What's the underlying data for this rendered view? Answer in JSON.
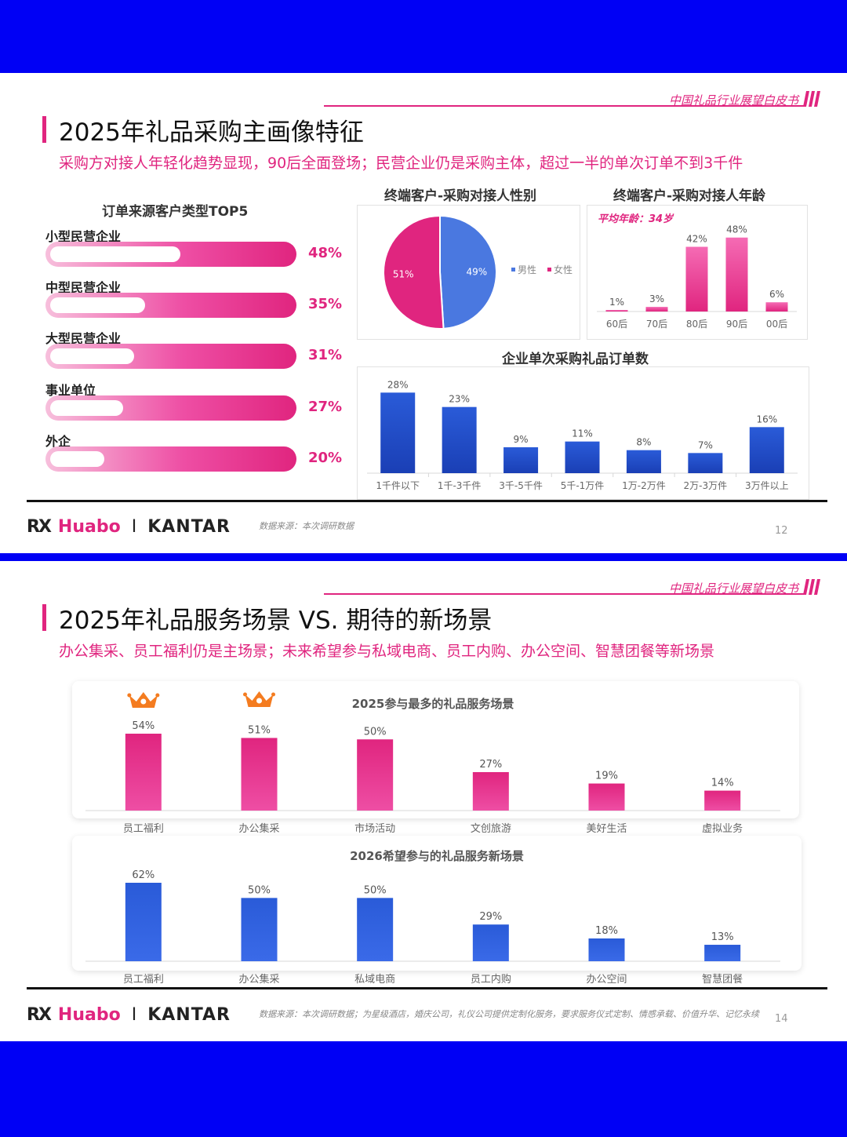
{
  "slide1": {
    "brand_tag": "中国礼品行业展望白皮书",
    "title": "2025年礼品采购主画像特征",
    "subtitle": "采购方对接人年轻化趋势显现，90后全面登场；民营企业仍是采购主体，超过一半的单次订单不到3千件",
    "customer_types": {
      "title": "订单来源客户类型TOP5",
      "items": [
        {
          "label": "小型民营企业",
          "value": 48,
          "display": "48%"
        },
        {
          "label": "中型民营企业",
          "value": 35,
          "display": "35%"
        },
        {
          "label": "大型民营企业",
          "value": 31,
          "display": "31%"
        },
        {
          "label": "事业单位",
          "value": 27,
          "display": "27%"
        },
        {
          "label": "外企",
          "value": 20,
          "display": "20%"
        }
      ]
    },
    "source": "数据来源：本次调研数据",
    "page_number": "12"
  },
  "slide2": {
    "brand_tag": "中国礼品行业展望白皮书",
    "title": "2025年礼品服务场景 VS. 期待的新场景",
    "subtitle": "办公集采、员工福利仍是主场景；未来希望参与私域电商、员工内购、办公空间、智慧团餐等新场景",
    "source": "数据来源：本次调研数据；为星级酒店，婚庆公司，礼仪公司提供定制化服务，要求服务仪式定制、情感承载、价值升华、记忆永续",
    "page_number": "14"
  },
  "footer": {
    "rx": "RX",
    "huabo": "Huabo",
    "sep": "I",
    "kantar": "KANTAR"
  },
  "colors": {
    "pink": "#e0257f",
    "blue": "#2f5bd6",
    "background": "#0000f5"
  },
  "icons": [
    "crown-icon",
    "crown-icon"
  ],
  "chart_data": [
    {
      "id": "gender",
      "type": "pie",
      "title": "终端客户-采购对接人性别",
      "labels": [
        "男性",
        "女性"
      ],
      "values": [
        49,
        51
      ],
      "display": [
        "49%",
        "51%"
      ],
      "colors": [
        "#4a78e0",
        "#e0257f"
      ],
      "legend": "right"
    },
    {
      "id": "age",
      "type": "bar",
      "title": "终端客户-采购对接人年龄",
      "annotation": "平均年龄：34岁",
      "categories": [
        "60后",
        "70后",
        "80后",
        "90后",
        "00后"
      ],
      "values": [
        1,
        3,
        42,
        48,
        6
      ],
      "display": [
        "1%",
        "3%",
        "42%",
        "48%",
        "6%"
      ],
      "ylim": [
        0,
        55
      ]
    },
    {
      "id": "order_size",
      "type": "bar",
      "title": "企业单次采购礼品订单数",
      "categories": [
        "1千件以下",
        "1千-3千件",
        "3千-5千件",
        "5千-1万件",
        "1万-2万件",
        "2万-3万件",
        "3万件以上"
      ],
      "values": [
        28,
        23,
        9,
        11,
        8,
        7,
        16
      ],
      "display": [
        "28%",
        "23%",
        "9%",
        "11%",
        "8%",
        "7%",
        "16%"
      ],
      "ylim": [
        0,
        30
      ]
    },
    {
      "id": "scenes_2025",
      "type": "bar",
      "title": "2025参与最多的礼品服务场景",
      "categories": [
        "员工福利",
        "办公集采",
        "市场活动",
        "文创旅游",
        "美好生活",
        "虚拟业务"
      ],
      "values": [
        54,
        51,
        50,
        27,
        19,
        14
      ],
      "display": [
        "54%",
        "51%",
        "50%",
        "27%",
        "19%",
        "14%"
      ],
      "ylim": [
        0,
        54
      ]
    },
    {
      "id": "scenes_2026",
      "type": "bar",
      "title": "2026希望参与的礼品服务新场景",
      "categories": [
        "员工福利",
        "办公集采",
        "私域电商",
        "员工内购",
        "办公空间",
        "智慧团餐"
      ],
      "values": [
        62,
        50,
        50,
        29,
        18,
        13
      ],
      "display": [
        "62%",
        "50%",
        "50%",
        "29%",
        "18%",
        "13%"
      ],
      "ylim": [
        0,
        62
      ]
    }
  ]
}
